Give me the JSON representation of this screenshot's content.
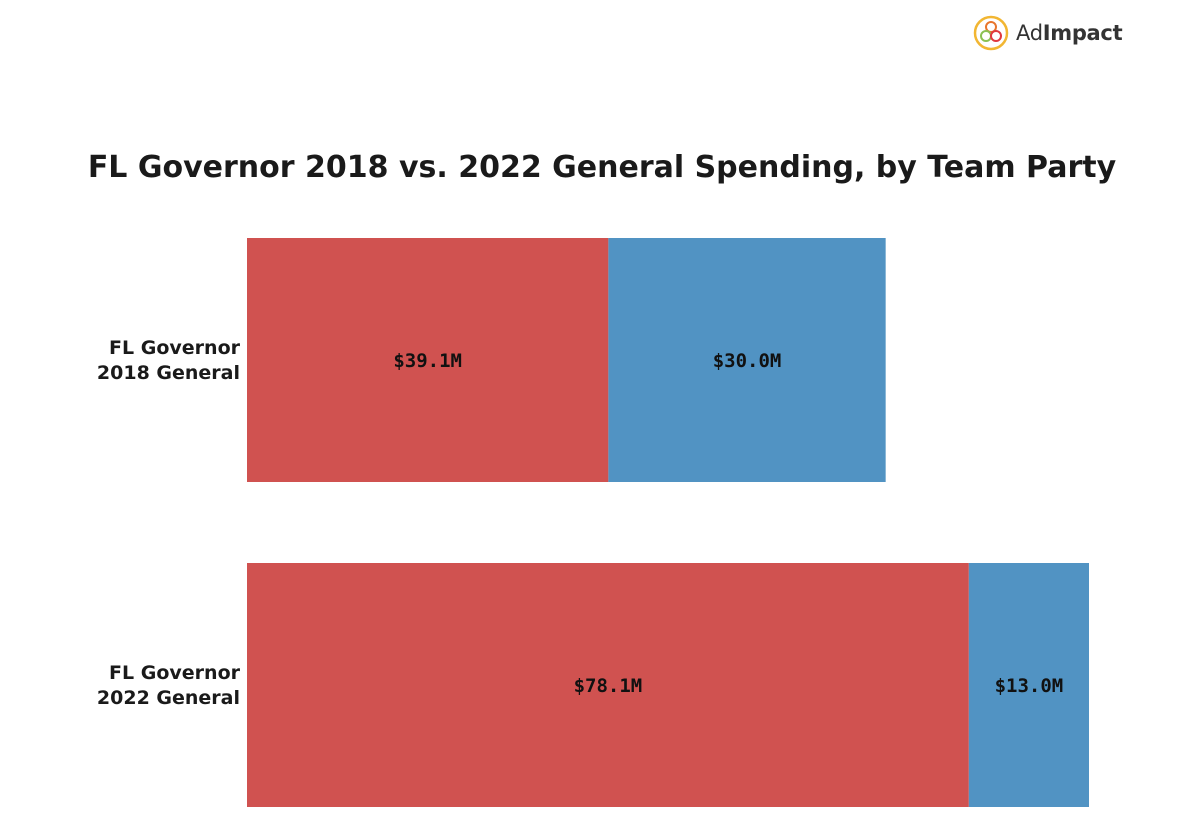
{
  "brand": {
    "logo_text_a": "Ad",
    "logo_text_b": "Impact",
    "logo_icon": "adimpact-logo-icon"
  },
  "chart_data": {
    "type": "bar",
    "orientation": "horizontal",
    "stacked": true,
    "title": "FL Governor 2018 vs. 2022 General Spending, by Team Party",
    "categories": [
      [
        "FL Governor",
        "2018 General"
      ],
      [
        "FL Governor",
        "2022 General"
      ]
    ],
    "series": [
      {
        "color": "#D05250",
        "values": [
          39.1,
          78.1
        ],
        "labels": [
          "$39.1M",
          "$78.1M"
        ]
      },
      {
        "color": "#5193C3",
        "values": [
          30.0,
          13.0
        ],
        "labels": [
          "$30.0M",
          "$13.0M"
        ]
      }
    ],
    "xlim": [
      0,
      91.1
    ],
    "grid": false,
    "legend": "none"
  }
}
